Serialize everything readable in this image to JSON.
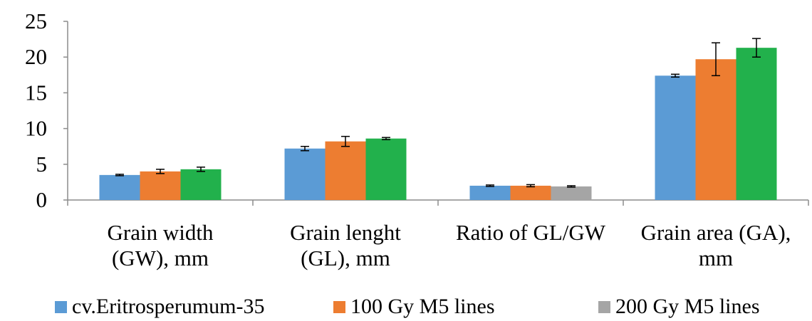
{
  "chart_data": {
    "type": "bar",
    "title": "",
    "xlabel": "",
    "ylabel": "",
    "ylim": [
      0,
      25
    ],
    "yticks": [
      "0",
      "5",
      "10",
      "15",
      "20",
      "25"
    ],
    "grid": false,
    "legend_position": "bottom",
    "categories": [
      [
        "Grain width",
        "(GW), mm"
      ],
      [
        "Grain lenght",
        "(GL), mm"
      ],
      [
        "Ratio of GL/GW"
      ],
      [
        "Grain area  (GA),",
        "mm"
      ]
    ],
    "series": [
      {
        "name": "cv.Eritrosperumum-35",
        "color": "#5b9bd5",
        "values": [
          3.5,
          7.2,
          2.0,
          17.4
        ],
        "errors": [
          0.1,
          0.3,
          0.1,
          0.2
        ]
      },
      {
        "name": "100 Gy M5  lines",
        "color": "#ed7d31",
        "values": [
          4.0,
          8.2,
          2.0,
          19.7
        ],
        "errors": [
          0.3,
          0.7,
          0.15,
          2.3
        ]
      },
      {
        "name": "200 Gy M5  lines",
        "color": "#a5a5a5",
        "values": [
          null,
          null,
          1.9,
          null
        ],
        "errors": [
          null,
          null,
          0.1,
          null
        ]
      },
      {
        "name": "",
        "color": "#22b14c",
        "values": [
          4.3,
          8.6,
          null,
          21.3
        ],
        "errors": [
          0.3,
          0.15,
          null,
          1.3
        ]
      }
    ]
  }
}
